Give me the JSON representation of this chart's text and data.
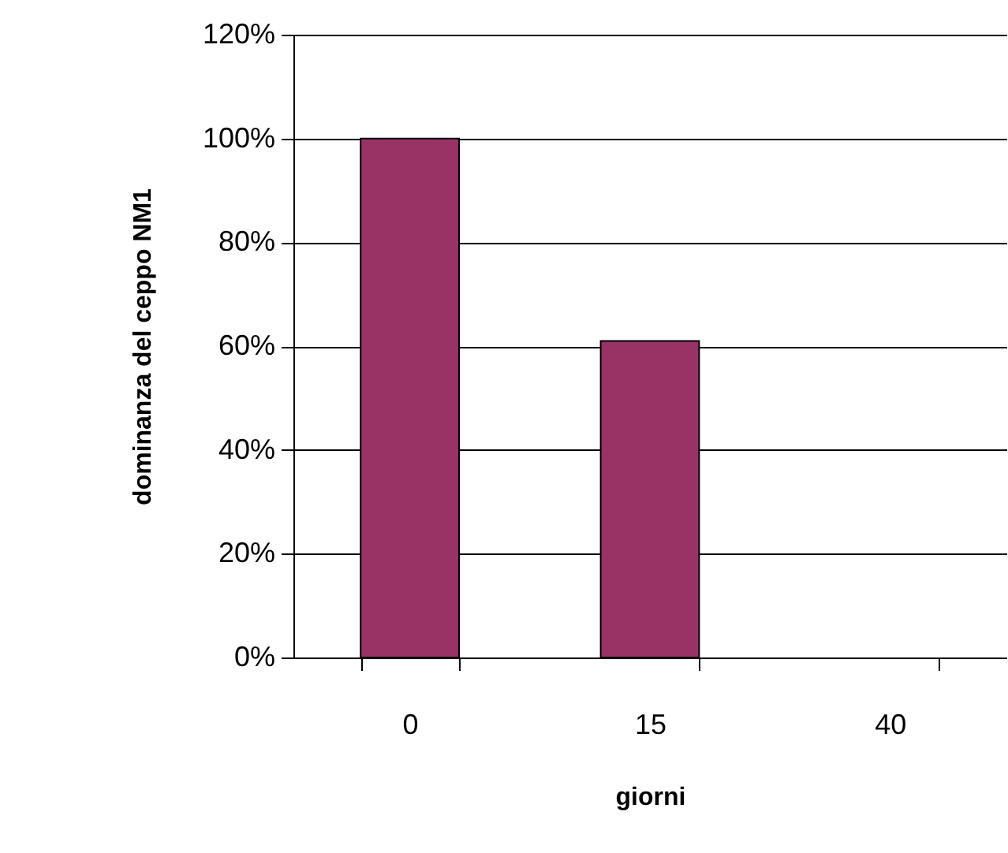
{
  "chart_data": {
    "type": "bar",
    "xlabel": "giorni",
    "ylabel": "dominanza del ceppo NM1",
    "categories": [
      "0",
      "15",
      "40"
    ],
    "values": [
      100,
      61,
      0
    ],
    "color": "#993366",
    "ylim": [
      0,
      120
    ],
    "yticks": [
      {
        "value": 0,
        "label": "0%"
      },
      {
        "value": 20,
        "label": "20%"
      },
      {
        "value": 40,
        "label": "40%"
      },
      {
        "value": 60,
        "label": "60%"
      },
      {
        "value": 80,
        "label": "80%"
      },
      {
        "value": 100,
        "label": "100%"
      },
      {
        "value": 120,
        "label": "120%"
      }
    ],
    "grid": "y"
  }
}
